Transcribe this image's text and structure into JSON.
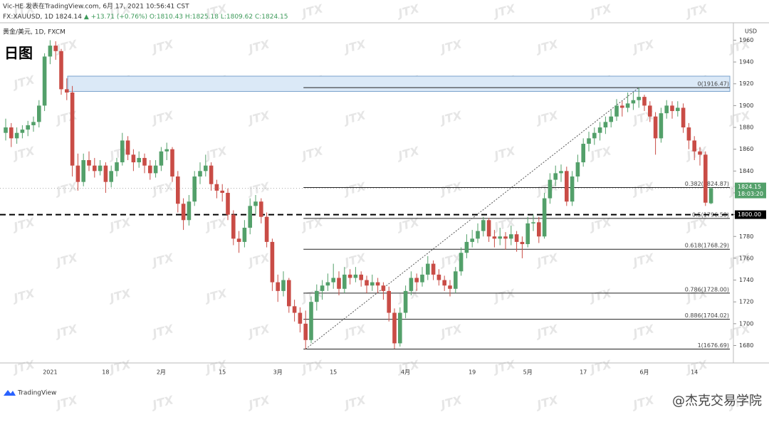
{
  "header": {
    "author_line": "Vic-HE 发表在TradingView.com, 6月 17, 2021 10:56:41 CST",
    "symbol": "FX:XAUUSD, 1D",
    "last": "1824.14",
    "change": "▲ +13.71 (+0.76%)",
    "ohlc": [
      "O:1810.43",
      "H:1825.18",
      "L:1809.62",
      "C:1824.15"
    ]
  },
  "chart_data": {
    "type": "candlestick",
    "title": "日图",
    "subtitle": "黄金/美元, 1D, FXCM",
    "currency": "USD",
    "up_color": "#53a06a",
    "down_color": "#c94c46",
    "categories": [
      null,
      null,
      null,
      null,
      null,
      null,
      null,
      null,
      "2021",
      null,
      null,
      null,
      null,
      null,
      null,
      null,
      null,
      null,
      "18",
      null,
      null,
      null,
      null,
      null,
      null,
      null,
      null,
      null,
      "2月",
      null,
      null,
      null,
      null,
      null,
      null,
      null,
      null,
      null,
      null,
      "15",
      null,
      null,
      null,
      null,
      null,
      null,
      null,
      null,
      null,
      "3月",
      null,
      null,
      null,
      null,
      null,
      null,
      null,
      null,
      null,
      "15",
      null,
      null,
      null,
      null,
      null,
      null,
      null,
      null,
      null,
      null,
      null,
      null,
      "4月",
      null,
      null,
      null,
      null,
      null,
      null,
      null,
      null,
      null,
      null,
      null,
      "19",
      null,
      null,
      null,
      null,
      null,
      null,
      null,
      null,
      null,
      "5月",
      null,
      null,
      null,
      null,
      null,
      null,
      null,
      null,
      null,
      "17",
      null,
      null,
      null,
      null,
      null,
      null,
      null,
      null,
      null,
      null,
      "6月",
      null,
      null,
      null,
      null,
      null,
      null,
      null,
      null,
      "14",
      null,
      null,
      null
    ],
    "ohlc": [
      [
        1875,
        1888,
        1868,
        1880
      ],
      [
        1880,
        1884,
        1862,
        1870
      ],
      [
        1870,
        1880,
        1865,
        1875
      ],
      [
        1875,
        1882,
        1870,
        1878
      ],
      [
        1878,
        1886,
        1872,
        1882
      ],
      [
        1882,
        1890,
        1876,
        1885
      ],
      [
        1885,
        1905,
        1880,
        1900
      ],
      [
        1900,
        1948,
        1895,
        1945
      ],
      [
        1945,
        1960,
        1938,
        1955
      ],
      [
        1955,
        1959,
        1942,
        1950
      ],
      [
        1950,
        1952,
        1910,
        1915
      ],
      [
        1915,
        1925,
        1905,
        1912
      ],
      [
        1912,
        1918,
        1835,
        1845
      ],
      [
        1845,
        1856,
        1822,
        1830
      ],
      [
        1830,
        1856,
        1826,
        1850
      ],
      [
        1850,
        1858,
        1840,
        1845
      ],
      [
        1845,
        1852,
        1834,
        1840
      ],
      [
        1840,
        1850,
        1836,
        1845
      ],
      [
        1845,
        1848,
        1820,
        1830
      ],
      [
        1830,
        1845,
        1825,
        1840
      ],
      [
        1840,
        1852,
        1835,
        1848
      ],
      [
        1848,
        1875,
        1845,
        1868
      ],
      [
        1868,
        1872,
        1850,
        1855
      ],
      [
        1855,
        1860,
        1840,
        1848
      ],
      [
        1848,
        1858,
        1843,
        1852
      ],
      [
        1852,
        1856,
        1838,
        1845
      ],
      [
        1845,
        1850,
        1832,
        1838
      ],
      [
        1838,
        1850,
        1834,
        1845
      ],
      [
        1845,
        1862,
        1840,
        1858
      ],
      [
        1858,
        1866,
        1850,
        1860
      ],
      [
        1860,
        1862,
        1830,
        1835
      ],
      [
        1835,
        1840,
        1802,
        1810
      ],
      [
        1810,
        1815,
        1786,
        1795
      ],
      [
        1795,
        1818,
        1790,
        1812
      ],
      [
        1812,
        1840,
        1808,
        1835
      ],
      [
        1835,
        1848,
        1828,
        1840
      ],
      [
        1840,
        1855,
        1835,
        1845
      ],
      [
        1845,
        1848,
        1822,
        1828
      ],
      [
        1828,
        1832,
        1815,
        1822
      ],
      [
        1822,
        1828,
        1812,
        1820
      ],
      [
        1820,
        1824,
        1795,
        1800
      ],
      [
        1800,
        1804,
        1772,
        1778
      ],
      [
        1778,
        1785,
        1765,
        1775
      ],
      [
        1775,
        1795,
        1770,
        1788
      ],
      [
        1788,
        1815,
        1782,
        1808
      ],
      [
        1808,
        1818,
        1800,
        1812
      ],
      [
        1812,
        1815,
        1792,
        1798
      ],
      [
        1798,
        1802,
        1770,
        1775
      ],
      [
        1775,
        1778,
        1730,
        1738
      ],
      [
        1738,
        1745,
        1720,
        1730
      ],
      [
        1730,
        1748,
        1725,
        1740
      ],
      [
        1740,
        1742,
        1710,
        1716
      ],
      [
        1716,
        1722,
        1702,
        1710
      ],
      [
        1710,
        1715,
        1692,
        1700
      ],
      [
        1700,
        1712,
        1676.69,
        1685
      ],
      [
        1685,
        1725,
        1682,
        1720
      ],
      [
        1720,
        1736,
        1712,
        1730
      ],
      [
        1730,
        1740,
        1722,
        1735
      ],
      [
        1735,
        1746,
        1730,
        1738
      ],
      [
        1738,
        1755,
        1732,
        1742
      ],
      [
        1742,
        1748,
        1726,
        1732
      ],
      [
        1732,
        1752,
        1728,
        1745
      ],
      [
        1745,
        1750,
        1736,
        1742
      ],
      [
        1742,
        1752,
        1738,
        1745
      ],
      [
        1745,
        1748,
        1734,
        1740
      ],
      [
        1740,
        1744,
        1728,
        1735
      ],
      [
        1735,
        1745,
        1730,
        1738
      ],
      [
        1738,
        1742,
        1728,
        1735
      ],
      [
        1735,
        1738,
        1722,
        1730
      ],
      [
        1730,
        1734,
        1702,
        1710
      ],
      [
        1710,
        1714,
        1677,
        1682
      ],
      [
        1682,
        1715,
        1679,
        1710
      ],
      [
        1710,
        1735,
        1705,
        1730
      ],
      [
        1730,
        1748,
        1726,
        1742
      ],
      [
        1742,
        1746,
        1730,
        1738
      ],
      [
        1738,
        1752,
        1734,
        1745
      ],
      [
        1745,
        1762,
        1740,
        1755
      ],
      [
        1755,
        1758,
        1740,
        1745
      ],
      [
        1745,
        1750,
        1735,
        1740
      ],
      [
        1740,
        1744,
        1730,
        1735
      ],
      [
        1735,
        1740,
        1725,
        1732
      ],
      [
        1732,
        1752,
        1728,
        1748
      ],
      [
        1748,
        1770,
        1744,
        1765
      ],
      [
        1765,
        1782,
        1760,
        1775
      ],
      [
        1775,
        1786,
        1770,
        1778
      ],
      [
        1778,
        1792,
        1774,
        1785
      ],
      [
        1785,
        1798,
        1780,
        1795
      ],
      [
        1795,
        1797,
        1775,
        1780
      ],
      [
        1780,
        1786,
        1770,
        1778
      ],
      [
        1778,
        1788,
        1772,
        1780
      ],
      [
        1780,
        1784,
        1768,
        1778
      ],
      [
        1778,
        1790,
        1772,
        1782
      ],
      [
        1782,
        1785,
        1766,
        1775
      ],
      [
        1775,
        1780,
        1760,
        1773
      ],
      [
        1773,
        1798,
        1770,
        1792
      ],
      [
        1792,
        1800,
        1785,
        1793
      ],
      [
        1793,
        1798,
        1774,
        1780
      ],
      [
        1780,
        1820,
        1778,
        1815
      ],
      [
        1815,
        1838,
        1810,
        1832
      ],
      [
        1832,
        1845,
        1826,
        1838
      ],
      [
        1838,
        1846,
        1830,
        1840
      ],
      [
        1840,
        1844,
        1808,
        1812
      ],
      [
        1812,
        1840,
        1808,
        1835
      ],
      [
        1835,
        1855,
        1830,
        1848
      ],
      [
        1848,
        1870,
        1844,
        1865
      ],
      [
        1865,
        1876,
        1858,
        1870
      ],
      [
        1870,
        1880,
        1864,
        1875
      ],
      [
        1875,
        1885,
        1868,
        1880
      ],
      [
        1880,
        1890,
        1874,
        1885
      ],
      [
        1885,
        1896,
        1880,
        1890
      ],
      [
        1890,
        1906,
        1886,
        1900
      ],
      [
        1900,
        1904,
        1890,
        1898
      ],
      [
        1898,
        1912,
        1894,
        1902
      ],
      [
        1902,
        1912,
        1896,
        1905
      ],
      [
        1905,
        1916.47,
        1898,
        1908
      ],
      [
        1908,
        1910,
        1895,
        1900
      ],
      [
        1900,
        1904,
        1885,
        1890
      ],
      [
        1890,
        1894,
        1855,
        1870
      ],
      [
        1870,
        1898,
        1866,
        1893
      ],
      [
        1893,
        1905,
        1888,
        1900
      ],
      [
        1900,
        1904,
        1888,
        1895
      ],
      [
        1895,
        1904,
        1890,
        1898
      ],
      [
        1898,
        1902,
        1875,
        1880
      ],
      [
        1880,
        1884,
        1860,
        1868
      ],
      [
        1868,
        1872,
        1850,
        1858
      ],
      [
        1858,
        1862,
        1845,
        1855
      ],
      [
        1855,
        1858,
        1808,
        1811
      ],
      [
        1810.43,
        1825.18,
        1809.62,
        1824.15
      ]
    ],
    "ylim": [
      1664,
      1974
    ],
    "yticks": [
      1680,
      1700,
      1720,
      1740,
      1760,
      1780,
      1800,
      1820,
      1840,
      1860,
      1880,
      1900,
      1920,
      1940,
      1960
    ],
    "last_price": {
      "value": 1824.15,
      "label": "1824.15",
      "countdown": "18:03:20"
    },
    "hlines": [
      {
        "value": 1800,
        "label": "1800.00"
      }
    ],
    "zone": [
      1913,
      1927
    ],
    "fib_levels": [
      {
        "value": 1916.47,
        "label": "0(1916.47)"
      },
      {
        "value": 1824.87,
        "label": "0.382(1824.87)"
      },
      {
        "value": 1796.58,
        "label": "0.5(1796.58)"
      },
      {
        "value": 1768.29,
        "label": "0.618(1768.29)"
      },
      {
        "value": 1728.0,
        "label": "0.786(1728.00)"
      },
      {
        "value": 1704.02,
        "label": "0.886(1704.02)"
      },
      {
        "value": 1676.69,
        "label": "1(1676.69)"
      }
    ],
    "watermark": "JTX"
  },
  "footer": {
    "brand": "TradingView",
    "watermark": "@杰克交易学院"
  }
}
